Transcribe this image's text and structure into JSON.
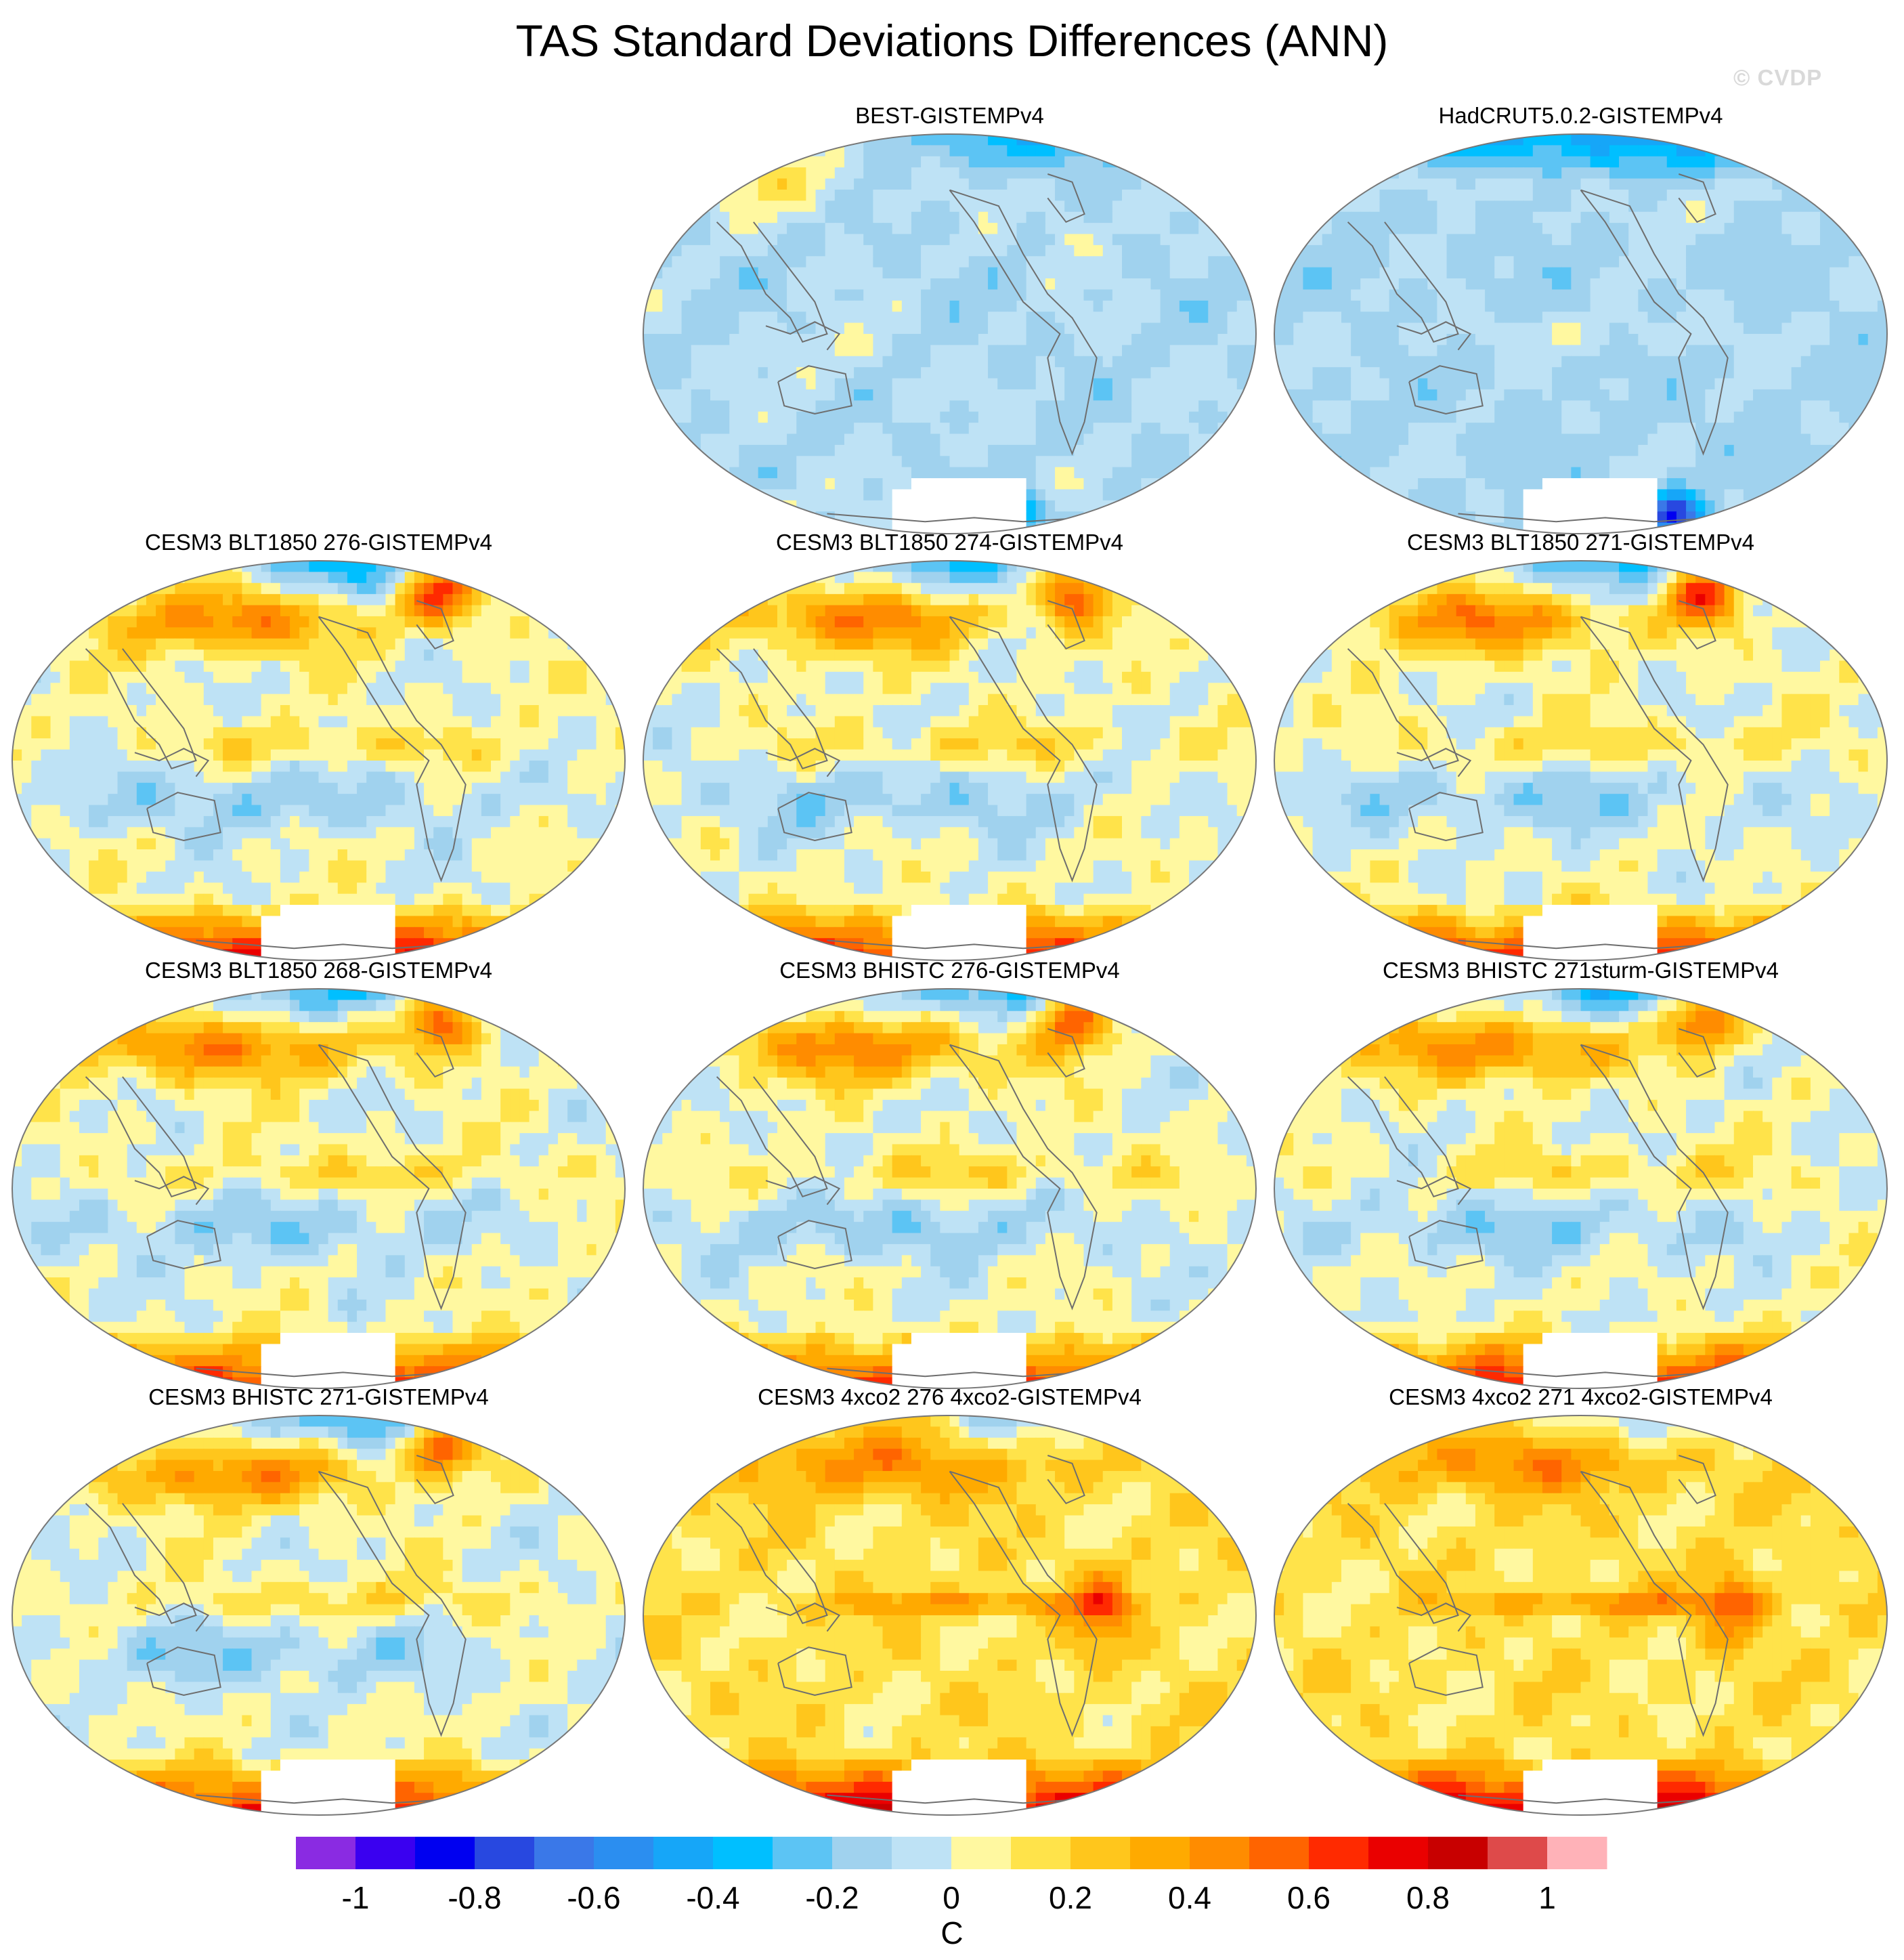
{
  "chart_data": {
    "type": "heatmap",
    "projection": "Robinson (Pacific-centered)",
    "title": "TAS Standard Deviations Differences (ANN)",
    "watermark": "© CVDP",
    "units": "C",
    "layout": "4 rows x 3 columns, first cell empty",
    "panels": [
      {
        "title": "BEST-GISTEMPv4",
        "pattern": "obs_best"
      },
      {
        "title": "HadCRUT5.0.2-GISTEMPv4",
        "pattern": "obs_hadcrut"
      },
      {
        "title": "CESM3 BLT1850 276-GISTEMPv4",
        "pattern": "model"
      },
      {
        "title": "CESM3 BLT1850 274-GISTEMPv4",
        "pattern": "model"
      },
      {
        "title": "CESM3 BLT1850 271-GISTEMPv4",
        "pattern": "model"
      },
      {
        "title": "CESM3 BLT1850 268-GISTEMPv4",
        "pattern": "model"
      },
      {
        "title": "CESM3 BHISTC 276-GISTEMPv4",
        "pattern": "model"
      },
      {
        "title": "CESM3 BHISTC 271sturm-GISTEMPv4",
        "pattern": "model"
      },
      {
        "title": "CESM3 BHISTC 271-GISTEMPv4",
        "pattern": "model"
      },
      {
        "title": "CESM3 4xco2 276 4xco2-GISTEMPv4",
        "pattern": "warm"
      },
      {
        "title": "CESM3 4xco2 271 4xco2-GISTEMPv4",
        "pattern": "warm"
      }
    ],
    "colorbar": {
      "levels": [
        -1.0,
        -0.9,
        -0.8,
        -0.7,
        -0.6,
        -0.5,
        -0.4,
        -0.3,
        -0.2,
        -0.1,
        0.0,
        0.1,
        0.2,
        0.3,
        0.4,
        0.5,
        0.6,
        0.7,
        0.8,
        0.9,
        1.0
      ],
      "colors": [
        "#8a2be2",
        "#3a00f0",
        "#0000f0",
        "#2848e0",
        "#3a78e8",
        "#2b8ef0",
        "#16a6f8",
        "#00bfff",
        "#5cc4f4",
        "#a0d2ee",
        "#bee2f5",
        "#fff8a0",
        "#ffe34a",
        "#ffc61c",
        "#ffaa00",
        "#ff8c00",
        "#ff6400",
        "#ff2a00",
        "#ea0000",
        "#c80000",
        "#de4a4a",
        "#ffb2b8"
      ],
      "tick_labels": [
        "-1",
        "-0.8",
        "-0.6",
        "-0.4",
        "-0.2",
        "0",
        "0.2",
        "0.4",
        "0.6",
        "0.8",
        "1"
      ],
      "tick_values": [
        -1.0,
        -0.8,
        -0.6,
        -0.4,
        -0.2,
        0.0,
        0.2,
        0.4,
        0.6,
        0.8,
        1.0
      ]
    }
  }
}
